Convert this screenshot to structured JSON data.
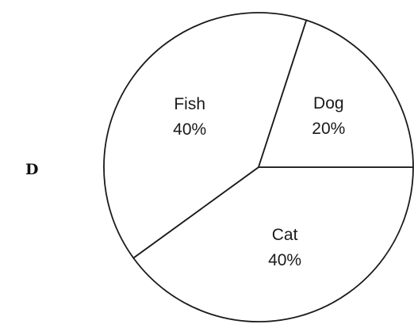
{
  "option_letter": "D",
  "chart_data": {
    "type": "pie",
    "direction": "clockwise",
    "slices": [
      {
        "label": "Cat",
        "value": 40,
        "value_label": "40%"
      },
      {
        "label": "Fish",
        "value": 40,
        "value_label": "40%"
      },
      {
        "label": "Dog",
        "value": 20,
        "value_label": "20%"
      }
    ],
    "slice_fill": "#ffffff",
    "outline_color": "#1a1a1a"
  }
}
